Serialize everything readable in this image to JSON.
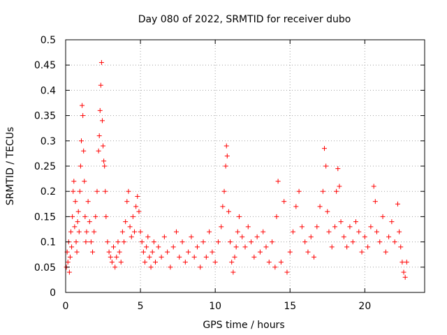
{
  "chart_data": {
    "type": "scatter",
    "title": "Day 080 of 2022, SRMTID for receiver dubo",
    "xlabel": "GPS time / hours",
    "ylabel": "SRMTID / TECUs",
    "xlim": [
      0,
      24
    ],
    "ylim": [
      0,
      0.5
    ],
    "xticks": [
      0,
      5,
      10,
      15,
      20
    ],
    "xtick_labels": [
      "0",
      "5",
      "10",
      "15",
      "20"
    ],
    "yticks": [
      0,
      0.05,
      0.1,
      0.15,
      0.2,
      0.25,
      0.3,
      0.35,
      0.4,
      0.45,
      0.5
    ],
    "ytick_labels": [
      "0",
      "0.05",
      "0.1",
      "0.15",
      "0.2",
      "0.25",
      "0.3",
      "0.35",
      "0.4",
      "0.45",
      "0.5"
    ],
    "grid": true,
    "marker": "+",
    "color": "#ff0000",
    "series": [
      {
        "name": "SRMTID",
        "points": [
          [
            0.05,
            0.05
          ],
          [
            0.1,
            0.08
          ],
          [
            0.15,
            0.06
          ],
          [
            0.2,
            0.1
          ],
          [
            0.25,
            0.04
          ],
          [
            0.3,
            0.07
          ],
          [
            0.35,
            0.12
          ],
          [
            0.4,
            0.09
          ],
          [
            0.45,
            0.15
          ],
          [
            0.5,
            0.2
          ],
          [
            0.55,
            0.22
          ],
          [
            0.6,
            0.13
          ],
          [
            0.65,
            0.18
          ],
          [
            0.7,
            0.1
          ],
          [
            0.75,
            0.08
          ],
          [
            0.8,
            0.14
          ],
          [
            0.85,
            0.16
          ],
          [
            0.9,
            0.12
          ],
          [
            0.95,
            0.2
          ],
          [
            1.0,
            0.25
          ],
          [
            1.05,
            0.3
          ],
          [
            1.1,
            0.37
          ],
          [
            1.15,
            0.35
          ],
          [
            1.2,
            0.28
          ],
          [
            1.25,
            0.22
          ],
          [
            1.3,
            0.15
          ],
          [
            1.35,
            0.1
          ],
          [
            1.4,
            0.12
          ],
          [
            1.5,
            0.18
          ],
          [
            1.6,
            0.14
          ],
          [
            1.7,
            0.1
          ],
          [
            1.8,
            0.08
          ],
          [
            1.9,
            0.12
          ],
          [
            2.0,
            0.15
          ],
          [
            2.1,
            0.2
          ],
          [
            2.2,
            0.28
          ],
          [
            2.25,
            0.31
          ],
          [
            2.3,
            0.36
          ],
          [
            2.35,
            0.41
          ],
          [
            2.4,
            0.455
          ],
          [
            2.45,
            0.34
          ],
          [
            2.5,
            0.29
          ],
          [
            2.55,
            0.26
          ],
          [
            2.6,
            0.25
          ],
          [
            2.65,
            0.2
          ],
          [
            2.7,
            0.15
          ],
          [
            2.8,
            0.1
          ],
          [
            2.9,
            0.08
          ],
          [
            3.0,
            0.07
          ],
          [
            3.1,
            0.06
          ],
          [
            3.2,
            0.09
          ],
          [
            3.3,
            0.05
          ],
          [
            3.4,
            0.07
          ],
          [
            3.5,
            0.1
          ],
          [
            3.6,
            0.08
          ],
          [
            3.7,
            0.06
          ],
          [
            3.8,
            0.12
          ],
          [
            3.9,
            0.1
          ],
          [
            4.0,
            0.14
          ],
          [
            4.1,
            0.18
          ],
          [
            4.2,
            0.2
          ],
          [
            4.3,
            0.13
          ],
          [
            4.4,
            0.11
          ],
          [
            4.5,
            0.15
          ],
          [
            4.6,
            0.12
          ],
          [
            4.7,
            0.17
          ],
          [
            4.8,
            0.19
          ],
          [
            4.9,
            0.16
          ],
          [
            5.0,
            0.12
          ],
          [
            5.1,
            0.1
          ],
          [
            5.2,
            0.08
          ],
          [
            5.3,
            0.06
          ],
          [
            5.4,
            0.09
          ],
          [
            5.5,
            0.11
          ],
          [
            5.6,
            0.07
          ],
          [
            5.7,
            0.05
          ],
          [
            5.8,
            0.08
          ],
          [
            5.9,
            0.1
          ],
          [
            6.0,
            0.06
          ],
          [
            6.2,
            0.09
          ],
          [
            6.4,
            0.07
          ],
          [
            6.6,
            0.11
          ],
          [
            6.8,
            0.08
          ],
          [
            7.0,
            0.05
          ],
          [
            7.2,
            0.09
          ],
          [
            7.4,
            0.12
          ],
          [
            7.6,
            0.07
          ],
          [
            7.8,
            0.1
          ],
          [
            8.0,
            0.06
          ],
          [
            8.2,
            0.08
          ],
          [
            8.4,
            0.11
          ],
          [
            8.6,
            0.07
          ],
          [
            8.8,
            0.09
          ],
          [
            9.0,
            0.05
          ],
          [
            9.2,
            0.1
          ],
          [
            9.4,
            0.07
          ],
          [
            9.6,
            0.12
          ],
          [
            9.8,
            0.08
          ],
          [
            10.0,
            0.06
          ],
          [
            10.2,
            0.1
          ],
          [
            10.4,
            0.13
          ],
          [
            10.5,
            0.17
          ],
          [
            10.6,
            0.2
          ],
          [
            10.7,
            0.25
          ],
          [
            10.75,
            0.29
          ],
          [
            10.8,
            0.27
          ],
          [
            10.9,
            0.16
          ],
          [
            11.0,
            0.1
          ],
          [
            11.1,
            0.06
          ],
          [
            11.2,
            0.04
          ],
          [
            11.3,
            0.07
          ],
          [
            11.4,
            0.09
          ],
          [
            11.5,
            0.12
          ],
          [
            11.6,
            0.15
          ],
          [
            11.8,
            0.11
          ],
          [
            12.0,
            0.09
          ],
          [
            12.2,
            0.13
          ],
          [
            12.4,
            0.1
          ],
          [
            12.6,
            0.07
          ],
          [
            12.8,
            0.11
          ],
          [
            13.0,
            0.08
          ],
          [
            13.2,
            0.12
          ],
          [
            13.4,
            0.09
          ],
          [
            13.6,
            0.06
          ],
          [
            13.8,
            0.1
          ],
          [
            14.0,
            0.05
          ],
          [
            14.1,
            0.15
          ],
          [
            14.2,
            0.22
          ],
          [
            14.4,
            0.06
          ],
          [
            14.6,
            0.18
          ],
          [
            14.8,
            0.04
          ],
          [
            15.0,
            0.08
          ],
          [
            15.2,
            0.12
          ],
          [
            15.4,
            0.17
          ],
          [
            15.6,
            0.2
          ],
          [
            15.8,
            0.13
          ],
          [
            16.0,
            0.1
          ],
          [
            16.2,
            0.08
          ],
          [
            16.4,
            0.11
          ],
          [
            16.6,
            0.07
          ],
          [
            16.8,
            0.13
          ],
          [
            17.0,
            0.17
          ],
          [
            17.2,
            0.2
          ],
          [
            17.3,
            0.285
          ],
          [
            17.4,
            0.25
          ],
          [
            17.5,
            0.16
          ],
          [
            17.6,
            0.12
          ],
          [
            17.8,
            0.09
          ],
          [
            18.0,
            0.13
          ],
          [
            18.1,
            0.2
          ],
          [
            18.2,
            0.245
          ],
          [
            18.3,
            0.21
          ],
          [
            18.4,
            0.14
          ],
          [
            18.6,
            0.11
          ],
          [
            18.8,
            0.09
          ],
          [
            19.0,
            0.13
          ],
          [
            19.2,
            0.1
          ],
          [
            19.4,
            0.14
          ],
          [
            19.6,
            0.12
          ],
          [
            19.8,
            0.08
          ],
          [
            20.0,
            0.11
          ],
          [
            20.2,
            0.09
          ],
          [
            20.4,
            0.13
          ],
          [
            20.6,
            0.21
          ],
          [
            20.7,
            0.18
          ],
          [
            20.8,
            0.12
          ],
          [
            21.0,
            0.1
          ],
          [
            21.2,
            0.15
          ],
          [
            21.4,
            0.08
          ],
          [
            21.6,
            0.11
          ],
          [
            21.8,
            0.14
          ],
          [
            22.0,
            0.1
          ],
          [
            22.2,
            0.175
          ],
          [
            22.3,
            0.12
          ],
          [
            22.4,
            0.09
          ],
          [
            22.5,
            0.06
          ],
          [
            22.6,
            0.04
          ],
          [
            22.7,
            0.03
          ],
          [
            22.8,
            0.06
          ]
        ]
      }
    ]
  }
}
